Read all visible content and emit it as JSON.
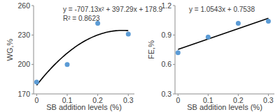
{
  "chart_data": [
    {
      "type": "scatter",
      "y_label": "WG,%",
      "x_label": "SB addition levels (%)",
      "x": [
        0,
        0.1,
        0.2,
        0.3
      ],
      "values": [
        182,
        200,
        242,
        231
      ],
      "color": "#5b9bd5",
      "marker": "circle",
      "xlim": [
        -0.01,
        0.32
      ],
      "ylim": [
        170,
        260
      ],
      "xticks": [
        0,
        0.1,
        0.2,
        0.3
      ],
      "yticks": [
        170,
        200,
        230,
        260
      ],
      "trendline": {
        "type": "polynomial",
        "coefficients": [
          -707.13,
          397.29,
          178.9
        ],
        "color": "#000000"
      },
      "annotations": [
        "y = -707.13x² + 397.29x + 178.9",
        "R² = 0.8623"
      ]
    },
    {
      "type": "scatter",
      "y_label": "FE,%",
      "x_label": "SB addition levels (%)",
      "x": [
        0,
        0.1,
        0.2,
        0.3
      ],
      "values": [
        0.72,
        0.88,
        1.02,
        1.04
      ],
      "color": "#5b9bd5",
      "marker": "circle",
      "xlim": [
        -0.01,
        0.32
      ],
      "ylim": [
        0.3,
        1.2
      ],
      "xticks": [
        0,
        0.1,
        0.2,
        0.3
      ],
      "yticks": [
        0.3,
        0.6,
        0.9,
        1.2
      ],
      "trendline": {
        "type": "linear",
        "coefficients": [
          1.0543,
          0.7538
        ],
        "color": "#000000"
      },
      "annotations": [
        "y = 1.0543x + 0.7538"
      ]
    }
  ]
}
